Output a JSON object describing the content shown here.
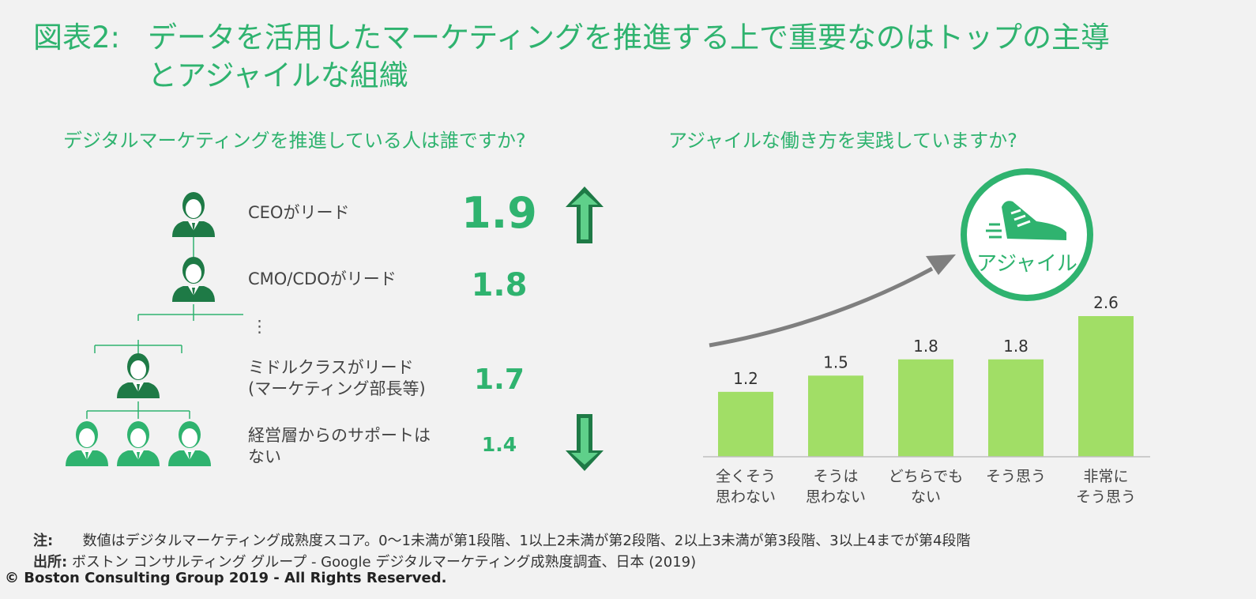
{
  "title": {
    "label": "図表2:",
    "text": "データを活用したマーケティングを推進する上で重要なのはトップの主導とアジャイルな組織"
  },
  "left": {
    "heading": "デジタルマーケティングを推進している人は誰ですか?",
    "ellipsis": "⋮",
    "rows": [
      {
        "label": "CEOがリード",
        "value": "1.9"
      },
      {
        "label": "CMO/CDOがリード",
        "value": "1.8"
      },
      {
        "label": "ミドルクラスがリード\n(マーケティング部長等)",
        "value": "1.7"
      },
      {
        "label": "経営層からのサポートは\nない",
        "value": "1.4"
      }
    ],
    "colors": {
      "person": "#1e7a46",
      "accent": "#2fb36f"
    },
    "icons": [
      "person-icon",
      "arrow-up-icon",
      "arrow-down-icon"
    ]
  },
  "chart_data": {
    "type": "bar",
    "title": "アジャイルな働き方を実践していますか?",
    "categories": [
      "全くそう\n思わない",
      "そうは\n思わない",
      "どちらでも\nない",
      "そう思う",
      "非常に\nそう思う"
    ],
    "values": [
      1.2,
      1.5,
      1.8,
      1.8,
      2.6
    ],
    "ylim": [
      0,
      2.6
    ],
    "grid": false,
    "bar_color": "#a1de66",
    "arrow_color": "#7f7f7f",
    "badge_label": "アジャイル",
    "badge_icon": "sneaker-icon"
  },
  "notes": {
    "note_label": "注:",
    "note_text": "数値はデジタルマーケティング成熟度スコア。0〜1未満が第1段階、1以上2未満が第2段階、2以上3未満が第3段階、3以上4までが第4段階",
    "source_label": "出所:",
    "source_text": "ボストン コンサルティング グループ - Google デジタルマーケティング成熟度調査、日本 (2019)"
  },
  "copyright": "© Boston Consulting Group 2019 - All Rights Reserved."
}
